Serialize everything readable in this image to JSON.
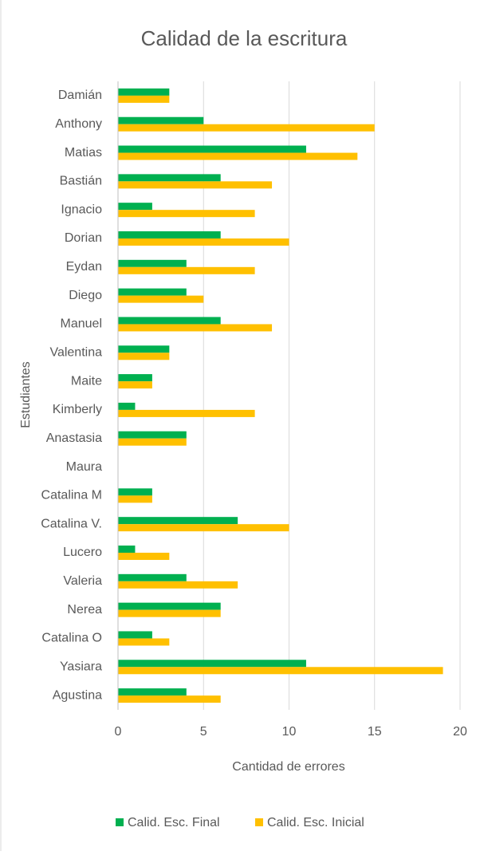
{
  "chart_data": {
    "type": "hbar",
    "title": "Calidad de la escritura",
    "x_label": "Cantidad de errores",
    "y_label": "Estudiantes",
    "categories": [
      "Damián",
      "Anthony",
      "Matias",
      "Bastián",
      "Ignacio",
      "Dorian",
      "Eydan",
      "Diego",
      "Manuel",
      "Valentina",
      "Maite",
      "Kimberly",
      "Anastasia",
      "Maura",
      "Catalina M",
      "Catalina V.",
      "Lucero",
      "Valeria",
      "Nerea",
      "Catalina O",
      "Yasiara",
      "Agustina"
    ],
    "series": [
      {
        "name": "Calid. Esc. Final",
        "color": "#00b050",
        "values": [
          3,
          5,
          11,
          6,
          2,
          6,
          4,
          4,
          6,
          3,
          2,
          1,
          4,
          0,
          2,
          7,
          1,
          4,
          6,
          2,
          11,
          4
        ]
      },
      {
        "name": "Calid. Esc. Inicial",
        "color": "#ffc000",
        "values": [
          3,
          15,
          14,
          9,
          8,
          10,
          8,
          5,
          9,
          3,
          2,
          8,
          4,
          0,
          2,
          10,
          3,
          7,
          6,
          3,
          19,
          6
        ]
      }
    ],
    "xlim": [
      0,
      20
    ],
    "xticks": [
      0,
      5,
      10,
      15,
      20
    ],
    "grid": true,
    "legend": "bottom"
  }
}
